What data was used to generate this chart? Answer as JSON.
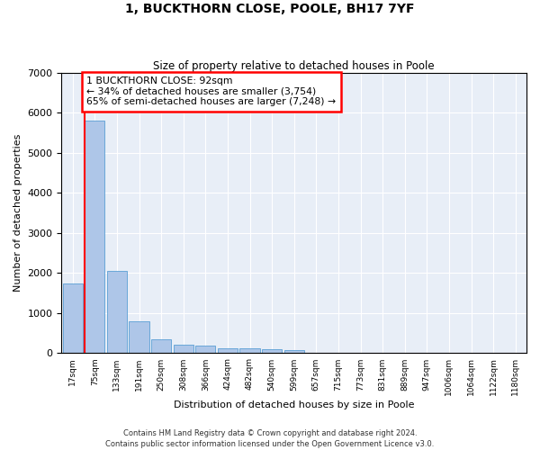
{
  "title": "1, BUCKTHORN CLOSE, POOLE, BH17 7YF",
  "subtitle": "Size of property relative to detached houses in Poole",
  "xlabel": "Distribution of detached houses by size in Poole",
  "ylabel": "Number of detached properties",
  "bar_color": "#aec6e8",
  "bar_edge_color": "#5a9fd4",
  "background_color": "#e8eef7",
  "grid_color": "#ffffff",
  "categories": [
    "17sqm",
    "75sqm",
    "133sqm",
    "191sqm",
    "250sqm",
    "308sqm",
    "366sqm",
    "424sqm",
    "482sqm",
    "540sqm",
    "599sqm",
    "657sqm",
    "715sqm",
    "773sqm",
    "831sqm",
    "889sqm",
    "947sqm",
    "1006sqm",
    "1064sqm",
    "1122sqm",
    "1180sqm"
  ],
  "values": [
    1750,
    5800,
    2060,
    790,
    350,
    220,
    190,
    130,
    115,
    105,
    75,
    0,
    0,
    0,
    0,
    0,
    0,
    0,
    0,
    0,
    0
  ],
  "ylim": [
    0,
    7000
  ],
  "red_line_x": 1.5,
  "annotation_text": "1 BUCKTHORN CLOSE: 92sqm\n← 34% of detached houses are smaller (3,754)\n65% of semi-detached houses are larger (7,248) →",
  "footer1": "Contains HM Land Registry data © Crown copyright and database right 2024.",
  "footer2": "Contains public sector information licensed under the Open Government Licence v3.0."
}
